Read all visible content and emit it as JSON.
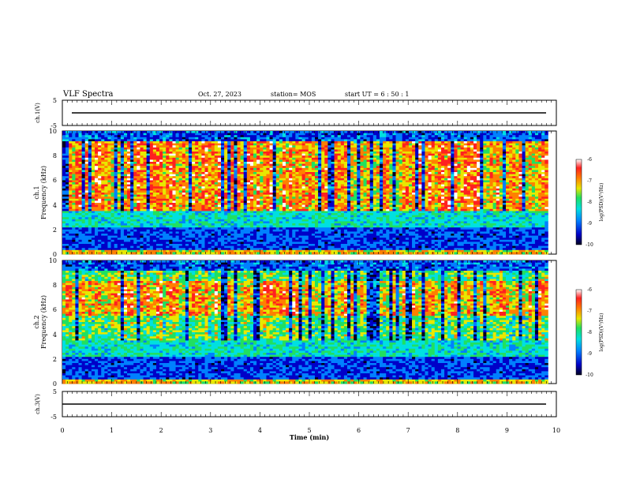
{
  "header": {
    "title": "VLF Spectra",
    "date": "Oct. 27, 2023",
    "station": "station= MOS",
    "start": "start  UT  =   6  : 50 : 1"
  },
  "chart_data": [
    {
      "type": "line",
      "panel": "ch1-voltage",
      "ylabel": "ch.1(V)",
      "ylim": [
        -5,
        5
      ],
      "yticks": [
        "5",
        "-5"
      ],
      "series": [
        {
          "name": "",
          "x": [
            0,
            10
          ],
          "values": [
            0,
            0
          ]
        }
      ]
    },
    {
      "type": "heatmap",
      "panel": "ch1-spectrogram",
      "ylabel": "ch.1\nFrequency (kHz)",
      "ylabel_line1": "ch.1",
      "ylabel_line2": "Frequency (kHz)",
      "ylim": [
        0,
        10
      ],
      "yticks": [
        "0",
        "2",
        "4",
        "6",
        "8",
        "10"
      ],
      "xlim": [
        0,
        9.83
      ],
      "colorbar": {
        "label": "log(PSD)(V²/Hz)",
        "range": [
          -10,
          -6
        ],
        "ticks": [
          "-6",
          "-7",
          "-8",
          "-9",
          "-10"
        ]
      }
    },
    {
      "type": "heatmap",
      "panel": "ch2-spectrogram",
      "ylabel_line1": "ch.2",
      "ylabel_line2": "Frequency (kHz)",
      "ylim": [
        0,
        10
      ],
      "yticks": [
        "0",
        "2",
        "4",
        "6",
        "8",
        "10"
      ],
      "xlim": [
        0,
        9.83
      ],
      "colorbar": {
        "label": "log(PSD)(V²/Hz)",
        "range": [
          -10,
          -6
        ],
        "ticks": [
          "-6",
          "-7",
          "-8",
          "-9",
          "-10"
        ]
      }
    },
    {
      "type": "line",
      "panel": "ch3-voltage",
      "ylabel": "ch.3(V)",
      "ylim": [
        -5,
        5
      ],
      "yticks": [
        "5",
        "-5"
      ],
      "series": [
        {
          "name": "",
          "x": [
            0,
            10
          ],
          "values": [
            0,
            0
          ]
        }
      ]
    }
  ],
  "xaxis": {
    "label": "Time  (min)",
    "xlim": [
      0,
      10
    ],
    "ticks": [
      "0",
      "1",
      "2",
      "3",
      "4",
      "5",
      "6",
      "7",
      "8",
      "9",
      "10"
    ]
  },
  "colors": {
    "background": "#ffffff",
    "axis": "#000000",
    "colormap": [
      "#000020",
      "#0000c8",
      "#0080ff",
      "#00e0e0",
      "#20e060",
      "#e8e800",
      "#ff8000",
      "#ff2020",
      "#ffffff"
    ]
  }
}
